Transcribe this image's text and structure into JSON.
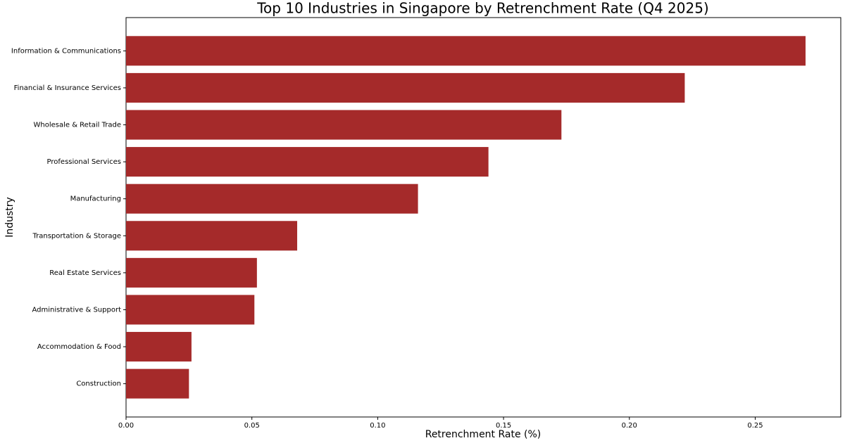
{
  "chart_data": {
    "type": "barh",
    "title": "Top 10 Industries in Singapore by Retrenchment Rate (Q4 2025)",
    "x_label": "Retrenchment Rate (%)",
    "y_label": "Industry",
    "categories": [
      "Information & Communications",
      "Financial & Insurance Services",
      "Wholesale & Retail Trade",
      "Professional Services",
      "Manufacturing",
      "Transportation & Storage",
      "Real Estate Services",
      "Administrative & Support",
      "Accommodation & Food",
      "Construction"
    ],
    "values": [
      0.27,
      0.222,
      0.173,
      0.144,
      0.116,
      0.068,
      0.052,
      0.051,
      0.026,
      0.025
    ],
    "color": "#a52a2a",
    "xlim": [
      0,
      0.284
    ],
    "xticks": [
      {
        "value": 0,
        "label": "0.00"
      },
      0.05,
      {
        "value": 0.1,
        "label": "0.10"
      },
      0.15,
      {
        "value": 0.2,
        "label": "0.20"
      },
      0.25
    ],
    "grid": false
  }
}
